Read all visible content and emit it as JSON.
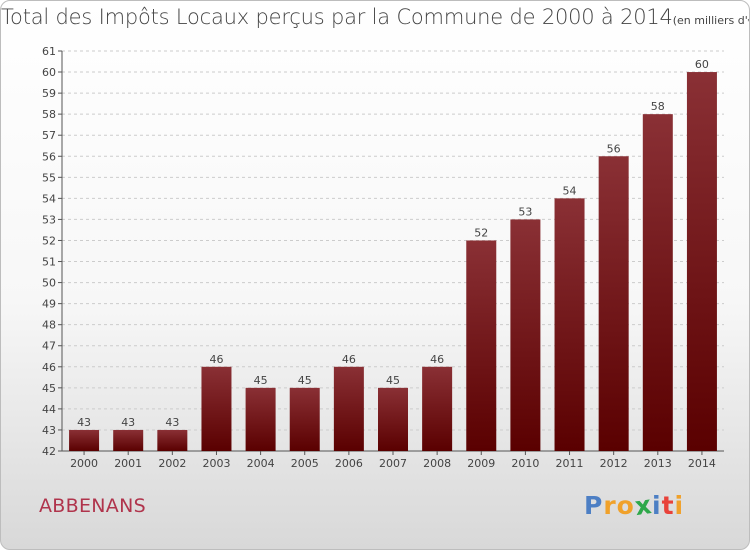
{
  "title": "Total des Impôts Locaux perçus par la Commune de 2000 à 2014",
  "units": "(en milliers d'€)",
  "commune": "ABBENANS",
  "logo_text": "Proxiti",
  "colors": {
    "bar_top": "#8a3035",
    "bar_bottom": "#5a0000",
    "grid": "#cccccc",
    "axis": "#555555",
    "text": "#444444"
  },
  "chart_data": {
    "type": "bar",
    "title": "Total des Impôts Locaux perçus par la Commune de 2000 à 2014",
    "xlabel": "",
    "ylabel": "",
    "categories": [
      "2000",
      "2001",
      "2002",
      "2003",
      "2004",
      "2005",
      "2006",
      "2007",
      "2008",
      "2009",
      "2010",
      "2011",
      "2012",
      "2013",
      "2014"
    ],
    "values": [
      43,
      43,
      43,
      46,
      45,
      45,
      46,
      45,
      46,
      52,
      53,
      54,
      56,
      58,
      60
    ],
    "ylim": [
      42,
      61
    ],
    "yticks": [
      42,
      43,
      44,
      45,
      46,
      47,
      48,
      49,
      50,
      51,
      52,
      53,
      54,
      55,
      56,
      57,
      58,
      59,
      60,
      61
    ],
    "grid": true
  }
}
